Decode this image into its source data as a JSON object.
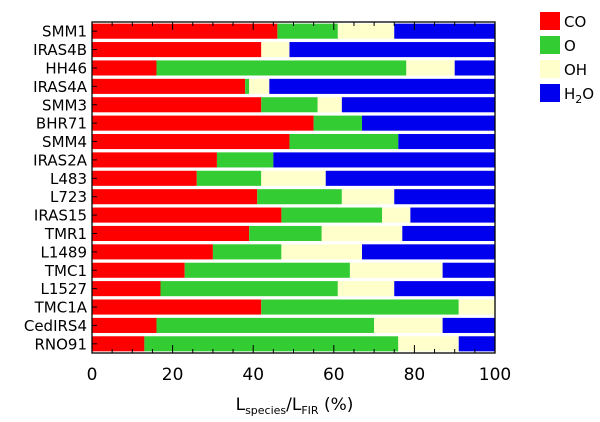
{
  "chart_data": {
    "type": "bar",
    "orientation": "horizontal",
    "stacked": true,
    "title": "",
    "xlabel": {
      "text": "L/L (%)",
      "parts": [
        {
          "t": "L",
          "sub": false
        },
        {
          "t": "species",
          "sub": true
        },
        {
          "t": "/L",
          "sub": false
        },
        {
          "t": "FIR",
          "sub": true
        },
        {
          "t": " (%)",
          "sub": false
        }
      ]
    },
    "ylabel": "",
    "xlim": [
      0,
      100
    ],
    "xticks": [
      0,
      20,
      40,
      60,
      80,
      100
    ],
    "categories": [
      "SMM1",
      "IRAS4B",
      "HH46",
      "IRAS4A",
      "SMM3",
      "BHR71",
      "SMM4",
      "IRAS2A",
      "L483",
      "L723",
      "IRAS15",
      "TMR1",
      "L1489",
      "TMC1",
      "L1527",
      "TMC1A",
      "CedIRS4",
      "RNO91"
    ],
    "series": [
      {
        "name": "CO",
        "legend": [
          {
            "t": "CO",
            "sub": false
          }
        ],
        "color": "#ff0000",
        "values": [
          46,
          42,
          16,
          38,
          42,
          55,
          49,
          31,
          26,
          41,
          47,
          39,
          30,
          23,
          17,
          42,
          16,
          13
        ]
      },
      {
        "name": "O",
        "legend": [
          {
            "t": "O",
            "sub": false
          }
        ],
        "color": "#33cc33",
        "values": [
          15,
          0,
          62,
          1,
          14,
          12,
          27,
          14,
          16,
          21,
          25,
          18,
          17,
          41,
          44,
          49,
          54,
          63
        ]
      },
      {
        "name": "OH",
        "legend": [
          {
            "t": "OH",
            "sub": false
          }
        ],
        "color": "#ffffcc",
        "values": [
          14,
          7,
          12,
          5,
          6,
          0,
          0,
          0,
          16,
          13,
          7,
          20,
          20,
          23,
          14,
          9,
          17,
          15
        ]
      },
      {
        "name": "H2O",
        "legend": [
          {
            "t": "H",
            "sub": false
          },
          {
            "t": "2",
            "sub": true
          },
          {
            "t": "O",
            "sub": false
          }
        ],
        "color": "#0000ee",
        "values": [
          25,
          51,
          10,
          56,
          38,
          33,
          24,
          55,
          42,
          25,
          21,
          23,
          33,
          13,
          25,
          0,
          13,
          9
        ]
      }
    ],
    "legend_position": "right",
    "grid": false
  }
}
